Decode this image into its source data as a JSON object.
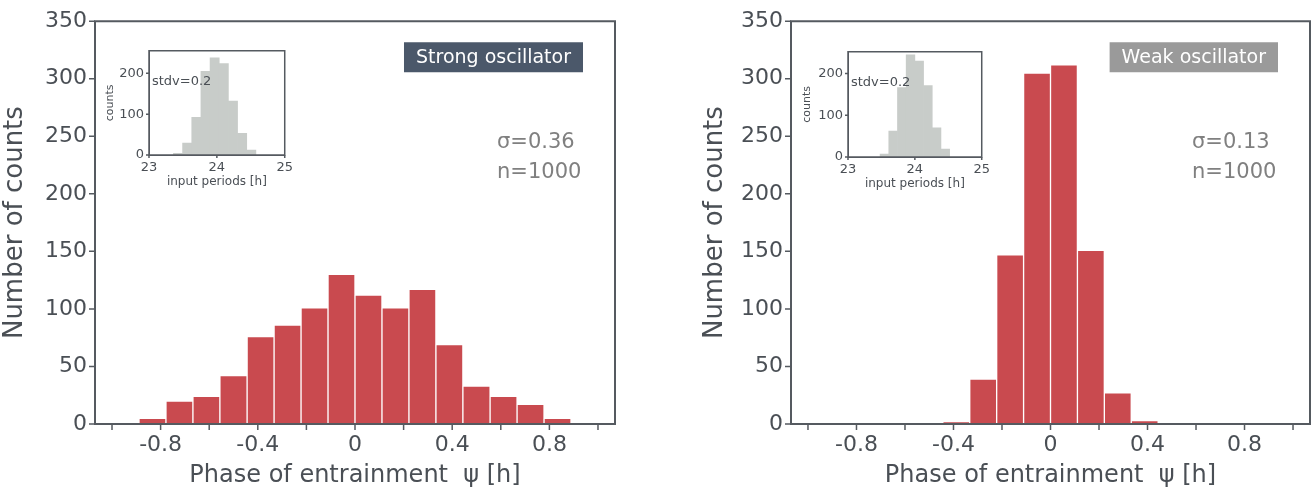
{
  "chart_data": [
    {
      "type": "histogram",
      "title": "Strong oscillator",
      "xlabel": "Phase of entrainment  ψ [h]",
      "ylabel": "Number of counts",
      "color": "#c94a4f",
      "bins": [
        -1,
        -0.889,
        -0.778,
        -0.667,
        -0.556,
        -0.444,
        -0.333,
        -0.222,
        -0.111,
        0,
        0.111,
        0.222,
        0.333,
        0.444,
        0.556,
        0.667,
        0.778,
        0.889
      ],
      "values": [
        1,
        5,
        20,
        24,
        42,
        76,
        86,
        101,
        130,
        112,
        101,
        117,
        69,
        33,
        24,
        17,
        5
      ],
      "xlim": [
        -1.07,
        1.07
      ],
      "xticks": [
        {
          "value": -1,
          "label": null
        },
        -0.8,
        {
          "value": -0.6,
          "label": null
        },
        -0.4,
        {
          "value": -0.2,
          "label": null
        },
        0,
        {
          "value": 0.2,
          "label": null
        },
        0.4,
        {
          "value": 0.6,
          "label": null
        },
        0.8,
        {
          "value": 1,
          "label": null
        }
      ],
      "ylim": [
        0,
        350
      ],
      "yticks": [
        0,
        50,
        100,
        150,
        200,
        250,
        300,
        350
      ],
      "annotations": [
        "σ=0.36",
        "n=1000"
      ]
    },
    {
      "type": "histogram",
      "xlabel": "input periods [h]",
      "ylabel": "counts",
      "color": "#c8ccc9",
      "bins": [
        23.36,
        23.495,
        23.63,
        23.765,
        23.9,
        24.035,
        24.17,
        24.305,
        24.44,
        24.575
      ],
      "values": [
        4,
        29,
        92,
        205,
        238,
        224,
        132,
        53,
        12
      ],
      "xlim": [
        23,
        25
      ],
      "xticks": [
        23,
        24,
        25
      ],
      "ylim": [
        0,
        255
      ],
      "yticks": [
        0,
        100,
        200
      ],
      "annotations": [
        "stdv=0.2"
      ]
    },
    {
      "type": "histogram",
      "title": "Weak oscillator",
      "xlabel": "Phase of entrainment  ψ [h]",
      "ylabel": "Number of counts",
      "color": "#c94a4f",
      "bins": [
        -0.444,
        -0.333,
        -0.222,
        -0.111,
        0,
        0.111,
        0.222,
        0.333,
        0.444
      ],
      "values": [
        2,
        39,
        147,
        305,
        312,
        151,
        27,
        3
      ],
      "xlim": [
        -1.07,
        1.07
      ],
      "xticks": [
        {
          "value": -1,
          "label": null
        },
        -0.8,
        {
          "value": -0.6,
          "label": null
        },
        -0.4,
        {
          "value": -0.2,
          "label": null
        },
        0,
        {
          "value": 0.2,
          "label": null
        },
        0.4,
        {
          "value": 0.6,
          "label": null
        },
        0.8,
        {
          "value": 1,
          "label": null
        }
      ],
      "ylim": [
        0,
        350
      ],
      "yticks": [
        0,
        50,
        100,
        150,
        200,
        250,
        300,
        350
      ],
      "annotations": [
        "σ=0.13",
        "n=1000"
      ]
    },
    {
      "type": "histogram",
      "xlabel": "input periods [h]",
      "ylabel": "counts",
      "color": "#c8ccc9",
      "bins": [
        23.48,
        23.61,
        23.74,
        23.87,
        24,
        24.13,
        24.26,
        24.39,
        24.52
      ],
      "values": [
        7,
        62,
        166,
        245,
        230,
        171,
        70,
        19
      ],
      "xlim": [
        23,
        25
      ],
      "xticks": [
        23,
        24,
        25
      ],
      "ylim": [
        0,
        252
      ],
      "yticks": [
        0,
        100,
        200
      ],
      "annotations": [
        "stdv=0.2"
      ]
    }
  ]
}
